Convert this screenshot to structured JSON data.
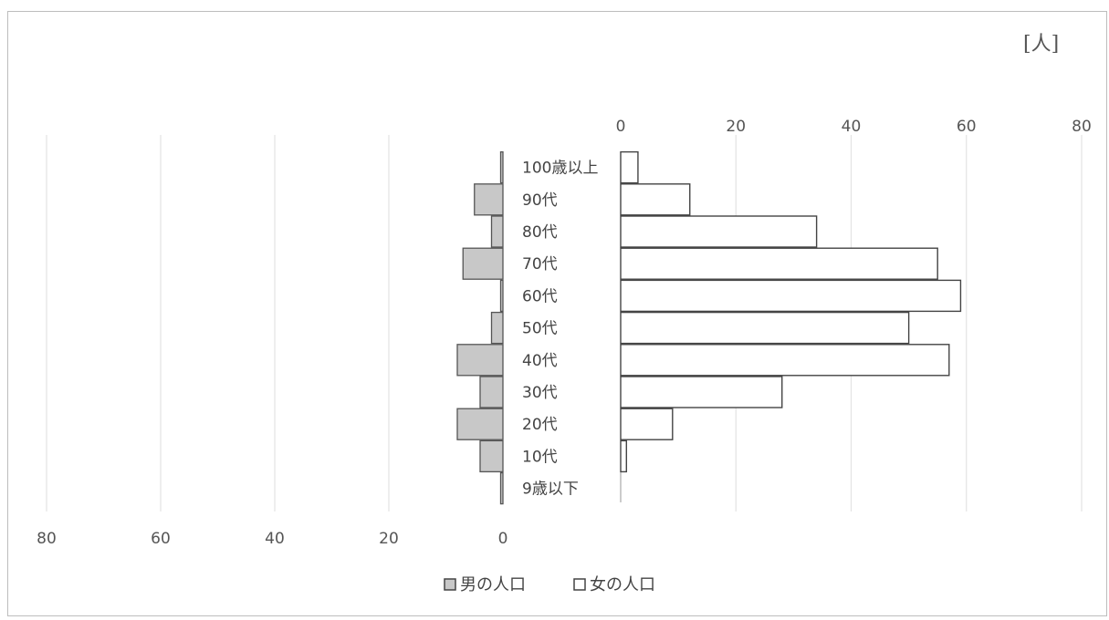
{
  "chart_data": {
    "type": "bar",
    "orientation": "horizontal",
    "layout": "population-pyramid",
    "unit_label": "[人]",
    "categories": [
      "100歳以上",
      "90代",
      "80代",
      "70代",
      "60代",
      "50代",
      "40代",
      "30代",
      "20代",
      "10代",
      "9歳以下"
    ],
    "series": [
      {
        "name": "男の人口",
        "color": "#c8c8c8",
        "values": [
          0,
          5,
          2,
          7,
          0,
          2,
          8,
          4,
          8,
          4,
          0
        ]
      },
      {
        "name": "女の人口",
        "color": "#ffffff",
        "values": [
          3,
          12,
          34,
          55,
          59,
          50,
          57,
          28,
          9,
          1,
          0
        ]
      }
    ],
    "male_axis": {
      "ticks": [
        "80",
        "60",
        "40",
        "20",
        "0"
      ],
      "range": [
        0,
        80
      ],
      "direction": "reversed",
      "position": "bottom"
    },
    "female_axis": {
      "ticks": [
        "0",
        "20",
        "40",
        "60",
        "80"
      ],
      "range": [
        0,
        80
      ],
      "position": "top"
    },
    "grid": true,
    "legend_position": "bottom"
  }
}
